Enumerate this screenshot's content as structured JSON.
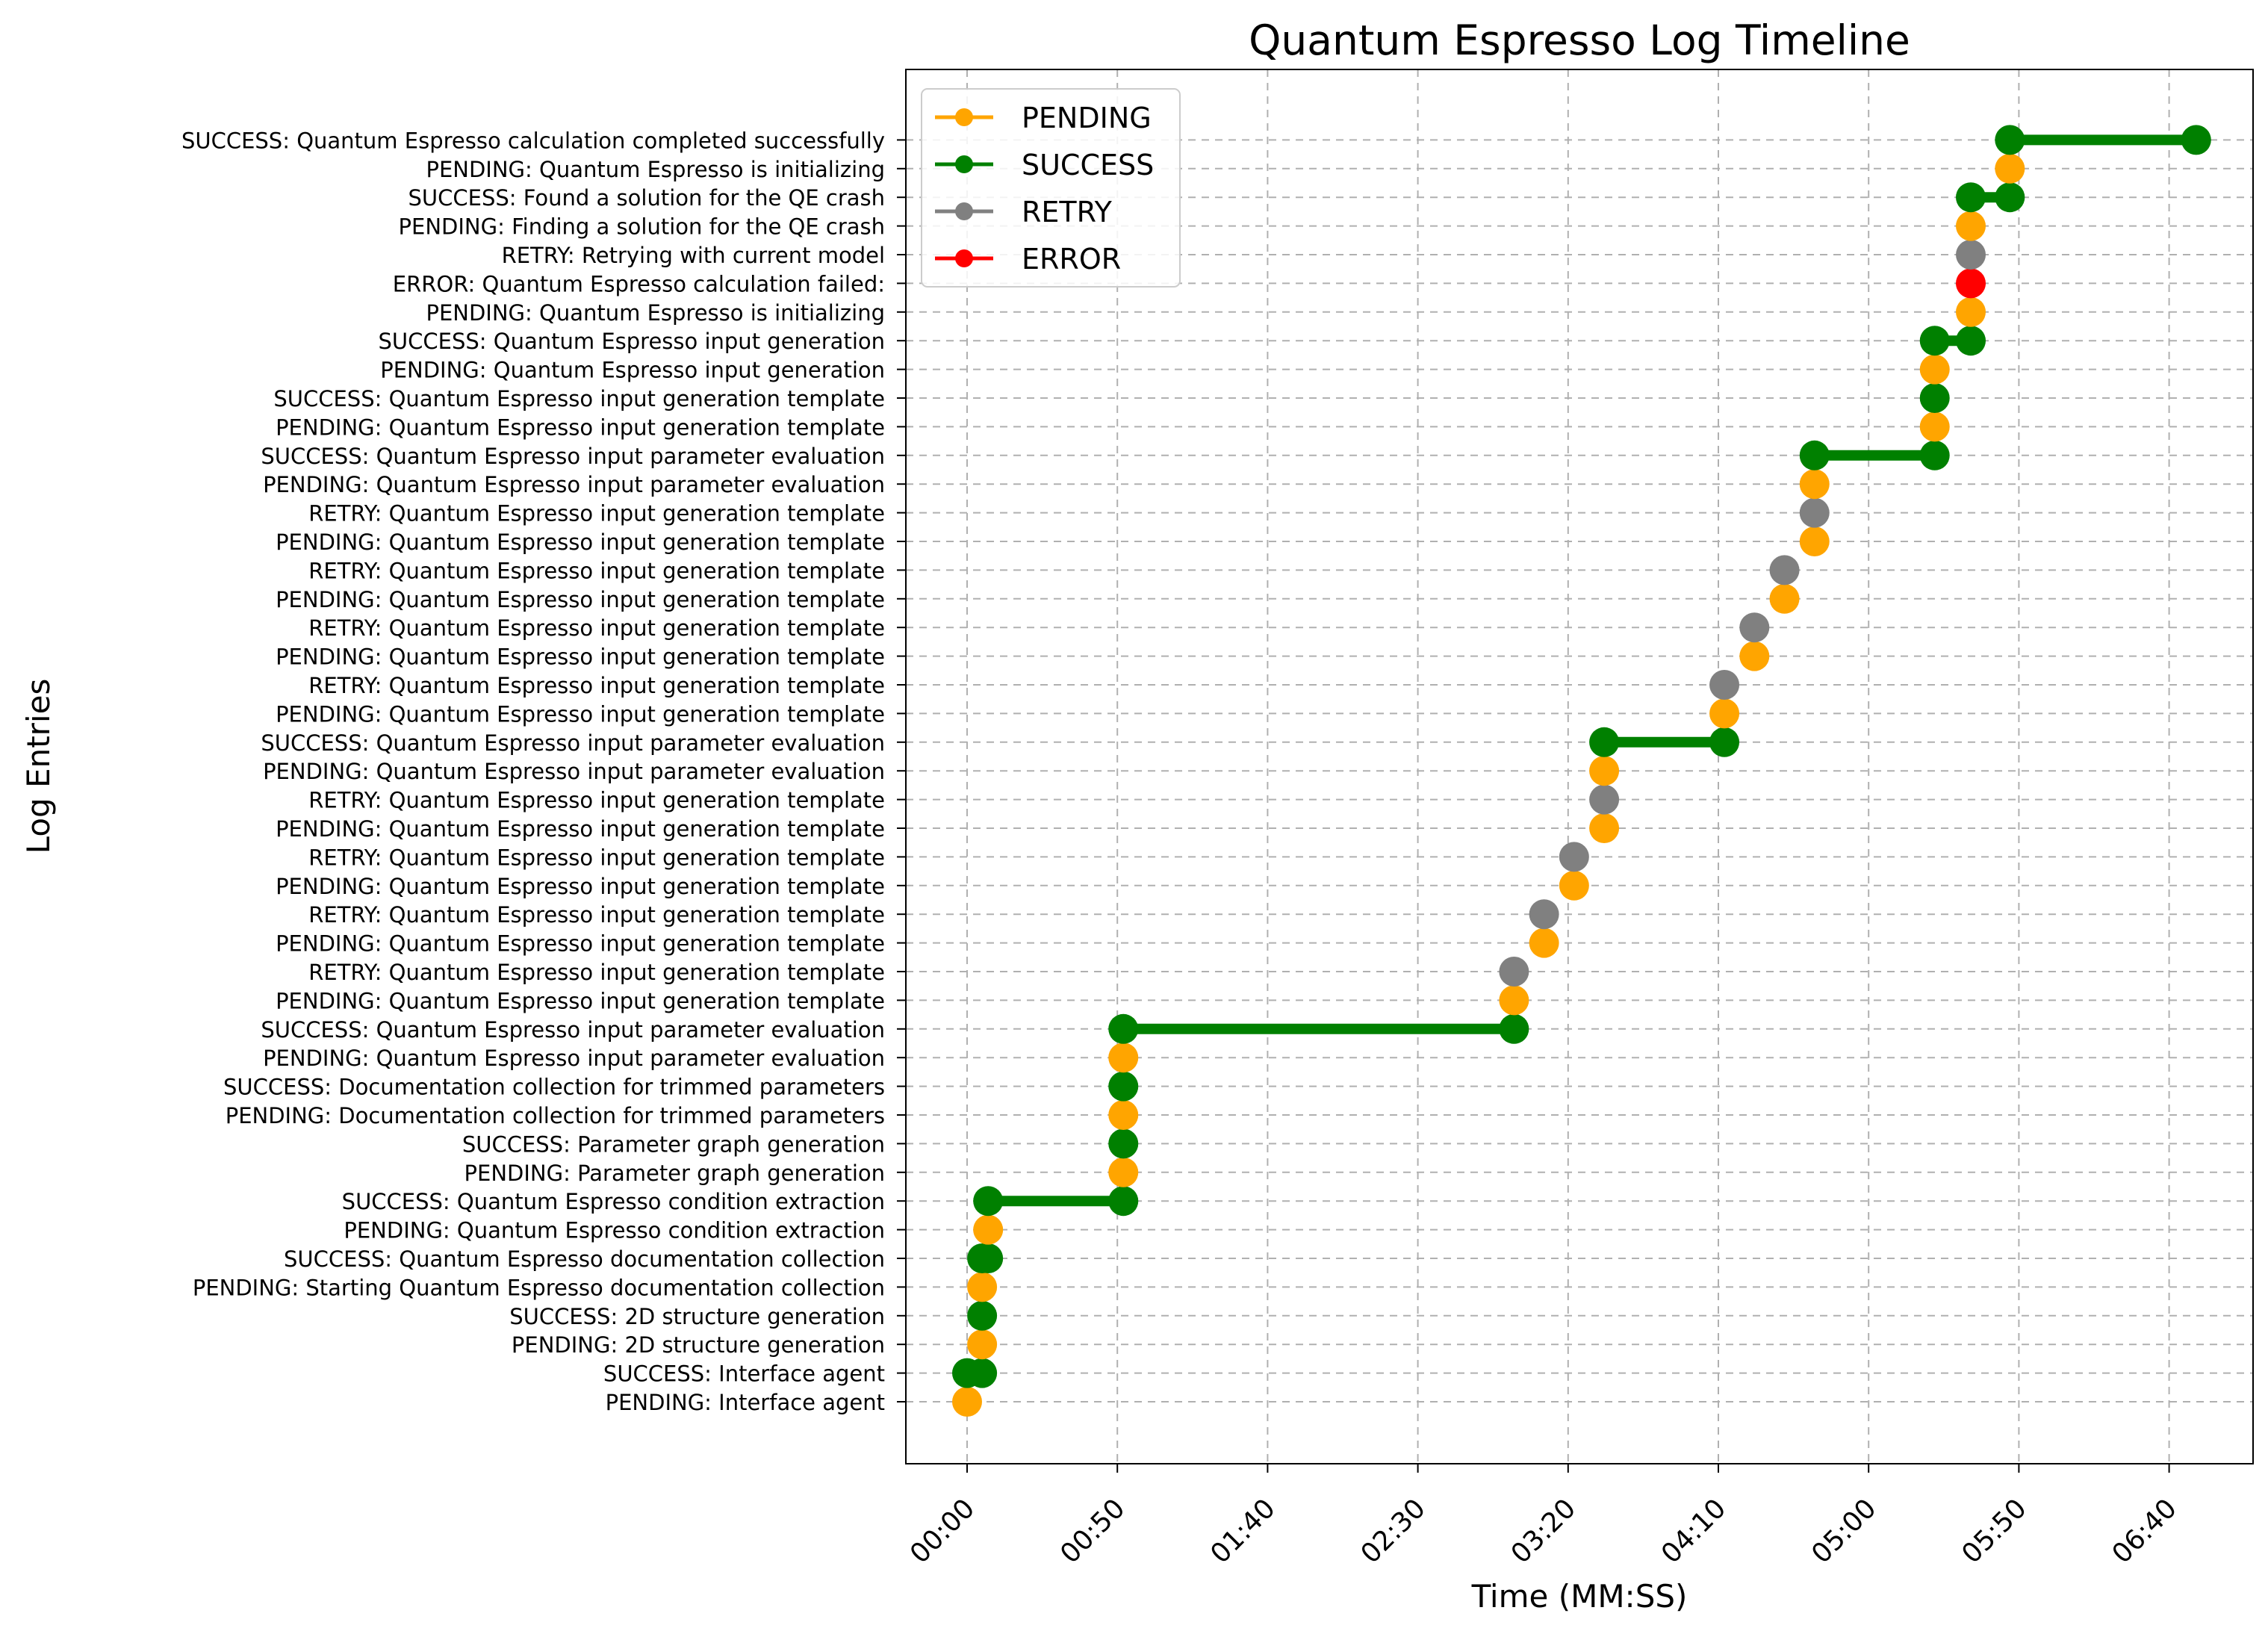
{
  "chart_data": {
    "type": "scatter",
    "title": "Quantum Espresso Log Timeline",
    "xlabel": "Time (MM:SS)",
    "ylabel": "Log Entries",
    "xlim": [
      -20,
      410
    ],
    "x_tick_values": [
      0,
      50,
      100,
      150,
      200,
      250,
      300,
      350,
      400
    ],
    "x_tick_labels": [
      "00:00",
      "00:50",
      "01:40",
      "02:30",
      "03:20",
      "04:10",
      "05:00",
      "05:50",
      "06:40"
    ],
    "grid": true,
    "legend_position": "upper-left",
    "status_colors": {
      "PENDING": "#FFA500",
      "SUCCESS": "#008000",
      "RETRY": "#808080",
      "ERROR": "#FF0000"
    },
    "legend": [
      "PENDING",
      "SUCCESS",
      "RETRY",
      "ERROR"
    ],
    "entries": [
      {
        "label": "PENDING: Interface agent",
        "status": "PENDING",
        "t": 0
      },
      {
        "label": "SUCCESS: Interface agent",
        "status": "SUCCESS",
        "t": 0,
        "t_end": 5
      },
      {
        "label": "PENDING: 2D structure generation",
        "status": "PENDING",
        "t": 5
      },
      {
        "label": "SUCCESS: 2D structure generation",
        "status": "SUCCESS",
        "t": 5
      },
      {
        "label": "PENDING: Starting Quantum Espresso documentation collection",
        "status": "PENDING",
        "t": 5
      },
      {
        "label": "SUCCESS: Quantum Espresso documentation collection",
        "status": "SUCCESS",
        "t": 5,
        "t_end": 7
      },
      {
        "label": "PENDING: Quantum Espresso condition extraction",
        "status": "PENDING",
        "t": 7
      },
      {
        "label": "SUCCESS: Quantum Espresso condition extraction",
        "status": "SUCCESS",
        "t": 7,
        "t_end": 52
      },
      {
        "label": "PENDING: Parameter graph generation",
        "status": "PENDING",
        "t": 52
      },
      {
        "label": "SUCCESS: Parameter graph generation",
        "status": "SUCCESS",
        "t": 52
      },
      {
        "label": "PENDING: Documentation collection for trimmed parameters",
        "status": "PENDING",
        "t": 52
      },
      {
        "label": "SUCCESS: Documentation collection for trimmed parameters",
        "status": "SUCCESS",
        "t": 52
      },
      {
        "label": "PENDING: Quantum Espresso input parameter evaluation",
        "status": "PENDING",
        "t": 52
      },
      {
        "label": "SUCCESS: Quantum Espresso input parameter evaluation",
        "status": "SUCCESS",
        "t": 52,
        "t_end": 182
      },
      {
        "label": "PENDING: Quantum Espresso input generation template",
        "status": "PENDING",
        "t": 182
      },
      {
        "label": "RETRY: Quantum Espresso input generation template",
        "status": "RETRY",
        "t": 182
      },
      {
        "label": "PENDING: Quantum Espresso input generation template",
        "status": "PENDING",
        "t": 192
      },
      {
        "label": "RETRY: Quantum Espresso input generation template",
        "status": "RETRY",
        "t": 192
      },
      {
        "label": "PENDING: Quantum Espresso input generation template",
        "status": "PENDING",
        "t": 202
      },
      {
        "label": "RETRY: Quantum Espresso input generation template",
        "status": "RETRY",
        "t": 202
      },
      {
        "label": "PENDING: Quantum Espresso input generation template",
        "status": "PENDING",
        "t": 212
      },
      {
        "label": "RETRY: Quantum Espresso input generation template",
        "status": "RETRY",
        "t": 212
      },
      {
        "label": "PENDING: Quantum Espresso input parameter evaluation",
        "status": "PENDING",
        "t": 212
      },
      {
        "label": "SUCCESS: Quantum Espresso input parameter evaluation",
        "status": "SUCCESS",
        "t": 212,
        "t_end": 252
      },
      {
        "label": "PENDING: Quantum Espresso input generation template",
        "status": "PENDING",
        "t": 252
      },
      {
        "label": "RETRY: Quantum Espresso input generation template",
        "status": "RETRY",
        "t": 252
      },
      {
        "label": "PENDING: Quantum Espresso input generation template",
        "status": "PENDING",
        "t": 262
      },
      {
        "label": "RETRY: Quantum Espresso input generation template",
        "status": "RETRY",
        "t": 262
      },
      {
        "label": "PENDING: Quantum Espresso input generation template",
        "status": "PENDING",
        "t": 272
      },
      {
        "label": "RETRY: Quantum Espresso input generation template",
        "status": "RETRY",
        "t": 272
      },
      {
        "label": "PENDING: Quantum Espresso input generation template",
        "status": "PENDING",
        "t": 282
      },
      {
        "label": "RETRY: Quantum Espresso input generation template",
        "status": "RETRY",
        "t": 282
      },
      {
        "label": "PENDING: Quantum Espresso input parameter evaluation",
        "status": "PENDING",
        "t": 282
      },
      {
        "label": "SUCCESS: Quantum Espresso input parameter evaluation",
        "status": "SUCCESS",
        "t": 282,
        "t_end": 322
      },
      {
        "label": "PENDING: Quantum Espresso input generation template",
        "status": "PENDING",
        "t": 322
      },
      {
        "label": "SUCCESS: Quantum Espresso input generation template",
        "status": "SUCCESS",
        "t": 322
      },
      {
        "label": "PENDING: Quantum Espresso input generation",
        "status": "PENDING",
        "t": 322
      },
      {
        "label": "SUCCESS: Quantum Espresso input generation",
        "status": "SUCCESS",
        "t": 322,
        "t_end": 334
      },
      {
        "label": "PENDING: Quantum Espresso is initializing",
        "status": "PENDING",
        "t": 334
      },
      {
        "label": "ERROR: Quantum Espresso calculation failed: ",
        "status": "ERROR",
        "t": 334
      },
      {
        "label": "RETRY: Retrying with current model",
        "status": "RETRY",
        "t": 334
      },
      {
        "label": "PENDING: Finding a solution for the QE crash",
        "status": "PENDING",
        "t": 334
      },
      {
        "label": "SUCCESS: Found a solution for the QE crash",
        "status": "SUCCESS",
        "t": 334,
        "t_end": 347
      },
      {
        "label": "PENDING: Quantum Espresso is initializing",
        "status": "PENDING",
        "t": 347
      },
      {
        "label": "SUCCESS: Quantum Espresso calculation completed successfully",
        "status": "SUCCESS",
        "t": 347,
        "t_end": 409
      }
    ]
  }
}
